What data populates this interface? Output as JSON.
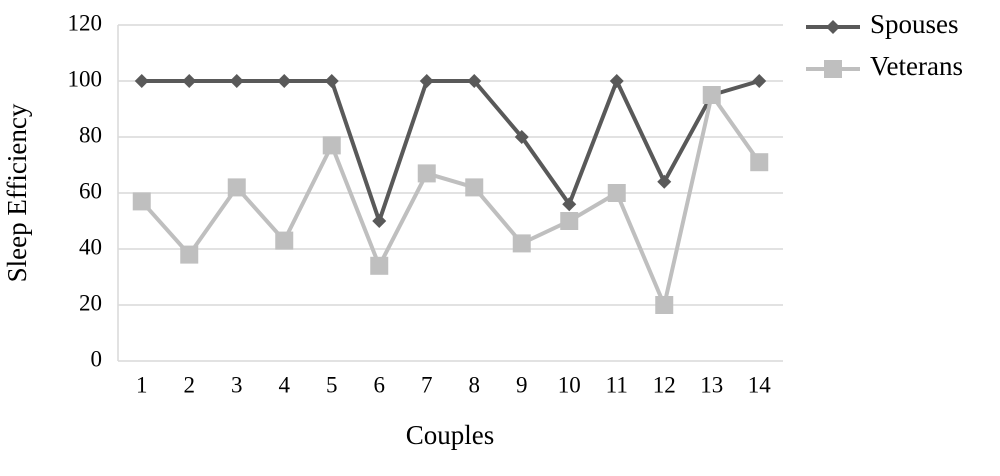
{
  "chart_data": {
    "type": "line",
    "categories": [
      "1",
      "2",
      "3",
      "4",
      "5",
      "6",
      "7",
      "8",
      "9",
      "10",
      "11",
      "12",
      "13",
      "14"
    ],
    "series": [
      {
        "name": "Spouses",
        "color": "#595959",
        "marker": "diamond",
        "values": [
          100,
          100,
          100,
          100,
          100,
          50,
          100,
          100,
          80,
          56,
          100,
          64,
          95,
          100
        ]
      },
      {
        "name": "Veterans",
        "color": "#bfbfbf",
        "marker": "square",
        "values": [
          57,
          38,
          62,
          43,
          77,
          34,
          67,
          62,
          42,
          50,
          60,
          20,
          95,
          71
        ]
      }
    ],
    "xlabel": "Couples",
    "ylabel": "Sleep Efficiency",
    "ylim": [
      0,
      120
    ],
    "yticks": [
      0,
      20,
      40,
      60,
      80,
      100,
      120
    ],
    "grid": true,
    "legend": "right"
  }
}
